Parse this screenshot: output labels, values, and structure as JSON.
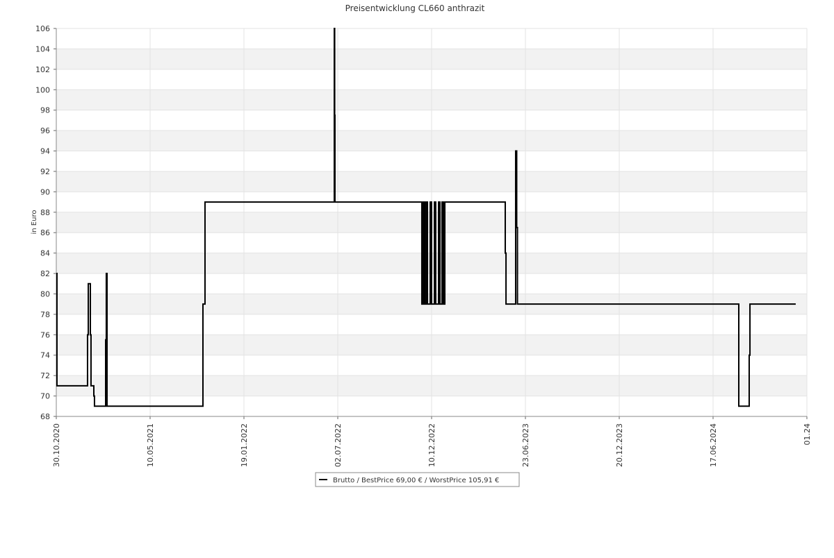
{
  "chart_data": {
    "type": "step",
    "title": "Preisentwicklung CL660 anthrazit",
    "y_label": "in Euro",
    "xlim": [
      0,
      8
    ],
    "xticks": [
      {
        "value": 0,
        "label": "30.10.2020"
      },
      {
        "value": 1,
        "label": "10.05.2021"
      },
      {
        "value": 2,
        "label": "19.01.2022"
      },
      {
        "value": 3,
        "label": "02.07.2022"
      },
      {
        "value": 4,
        "label": "10.12.2022"
      },
      {
        "value": 5,
        "label": "23.06.2023"
      },
      {
        "value": 6,
        "label": "20.12.2023"
      },
      {
        "value": 7,
        "label": "17.06.2024"
      },
      {
        "value": 8,
        "label": "01.24"
      }
    ],
    "ylim": [
      68,
      106
    ],
    "yticks": [
      68,
      70,
      72,
      74,
      76,
      78,
      80,
      82,
      84,
      86,
      88,
      90,
      92,
      94,
      96,
      98,
      100,
      102,
      104,
      106
    ],
    "grid": true,
    "legend": "bottom",
    "series": [
      {
        "name": "Brutto / BestPrice  69,00 € / WorstPrice  105,91 €",
        "color": "#000000",
        "x": [
          0,
          0.007,
          0.333,
          0.341,
          0.363,
          0.37,
          0.4,
          0.407,
          0.526,
          0.533,
          0.541,
          1.563,
          1.585,
          2.963,
          2.967,
          2.97,
          3.896,
          3.911,
          3.926,
          3.941,
          3.956,
          3.985,
          4.0,
          4.03,
          4.044,
          4.074,
          4.089,
          4.111,
          4.126,
          4.141,
          4.785,
          4.793,
          4.896,
          4.907,
          4.915,
          7.274,
          7.385,
          7.393,
          7.881
        ],
        "values": [
          82,
          71,
          76,
          81,
          76,
          71,
          70,
          69,
          75.5,
          82,
          69,
          79,
          89,
          106,
          97.5,
          89,
          79,
          89,
          79,
          89,
          79,
          89,
          79,
          89,
          79,
          89,
          79,
          89,
          79,
          89,
          84,
          79,
          94,
          86.5,
          79,
          69,
          74,
          79,
          79
        ]
      }
    ]
  }
}
